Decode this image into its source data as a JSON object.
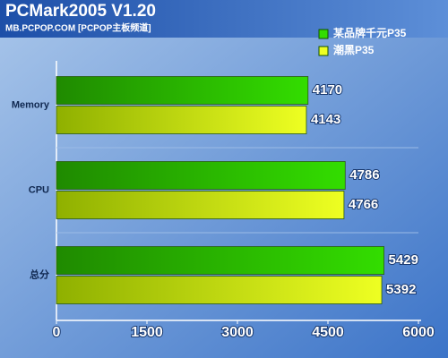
{
  "chart_data": {
    "type": "bar",
    "orientation": "horizontal",
    "title": "PCMark2005 V1.20",
    "subtitle": "MB.PCPOP.COM [PCPOP主板频道]",
    "categories": [
      "Memory",
      "CPU",
      "总分"
    ],
    "series": [
      {
        "name": "某品牌千元P35",
        "color": "#33dd00",
        "values": [
          4170,
          4786,
          5429
        ]
      },
      {
        "name": "潮黑P35",
        "color": "#eeff22",
        "values": [
          4143,
          4766,
          5392
        ]
      }
    ],
    "xlim": [
      0,
      6000
    ],
    "xticks": [
      0,
      1500,
      3000,
      4500,
      6000
    ]
  }
}
